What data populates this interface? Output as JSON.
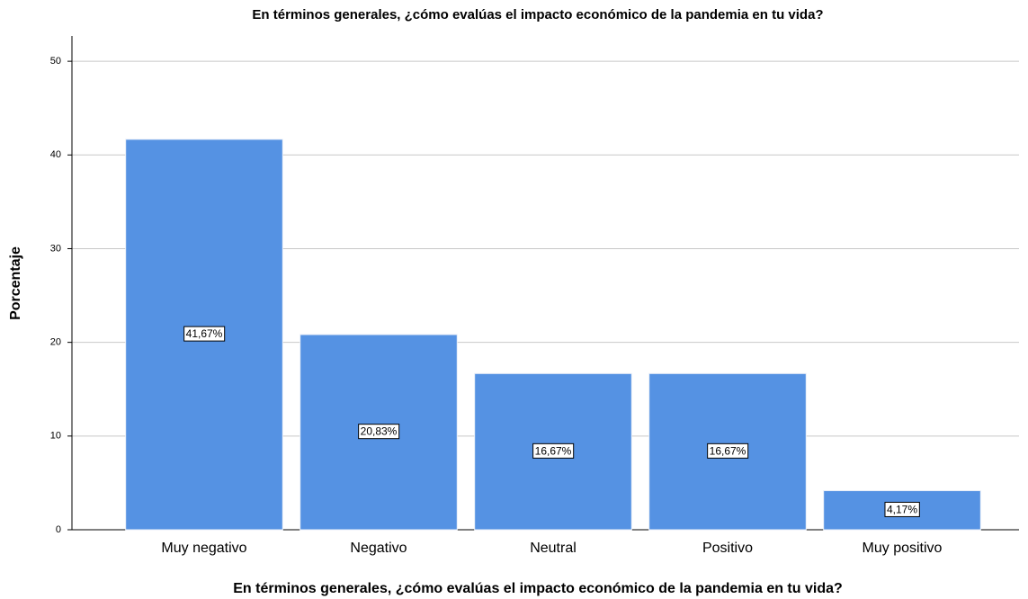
{
  "chart_data": {
    "type": "bar",
    "title": "En términos generales, ¿cómo evalúas el impacto económico de la pandemia en tu vida?",
    "x_label": "En términos generales, ¿cómo evalúas el impacto económico de la pandemia en tu vida?",
    "y_label": "Porcentaje",
    "categories": [
      "Muy negativo",
      "Negativo",
      "Neutral",
      "Positivo",
      "Muy positivo"
    ],
    "values": [
      41.67,
      20.83,
      16.67,
      16.67,
      4.17
    ],
    "value_labels": [
      "41,67%",
      "20,83%",
      "16,67%",
      "16,67%",
      "4,17%"
    ],
    "color": "#5592e3",
    "ylim": [
      0,
      52.7
    ],
    "yticks": [
      0,
      10,
      20,
      30,
      40,
      50
    ],
    "grid": true
  }
}
